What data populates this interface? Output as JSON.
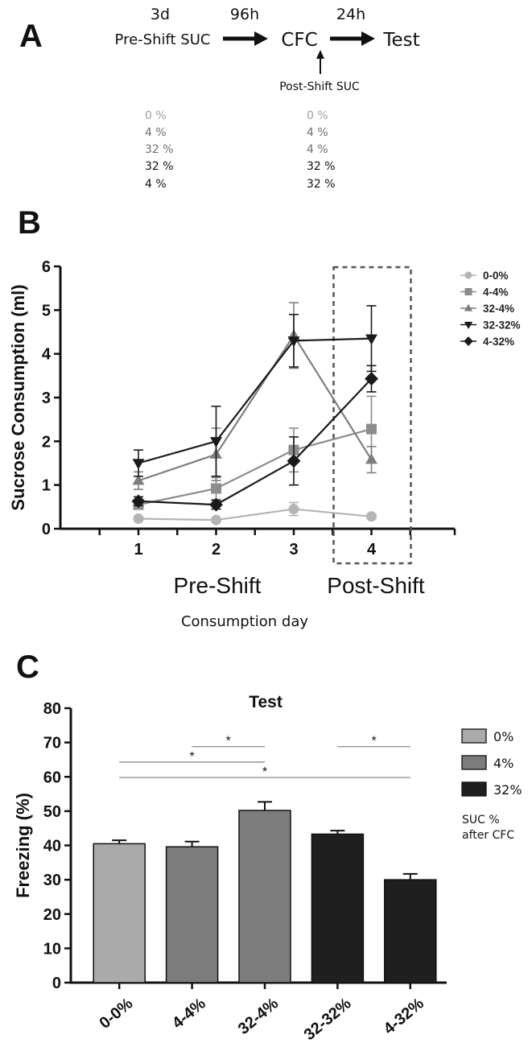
{
  "panel_a": {
    "letter": "A",
    "durations": {
      "pre": "3d",
      "gap1": "96h",
      "gap2": "24h"
    },
    "stages": {
      "pre_shift": "Pre-Shift SUC",
      "cfc": "CFC",
      "test": "Test",
      "post_shift": "Post-Shift SUC"
    },
    "groups": [
      {
        "pre": "0 %",
        "post": "0 %",
        "color": "#9e9e9e"
      },
      {
        "pre": "4 %",
        "post": "4 %",
        "color": "#7a7a7a"
      },
      {
        "pre": "32 %",
        "post": "4 %",
        "color": "#7a7a7a"
      },
      {
        "pre": "32 %",
        "post": "32 %",
        "color": "#111111"
      },
      {
        "pre": "4 %",
        "post": "32 %",
        "color": "#111111"
      }
    ]
  },
  "panel_b": {
    "letter": "B",
    "shift_labels": {
      "pre": "Pre-Shift",
      "post": "Post-Shift"
    }
  },
  "panel_c": {
    "letter": "C",
    "legend_note": [
      "SUC %",
      "after CFC"
    ]
  },
  "chart_data": [
    {
      "type": "line",
      "title": "",
      "xlabel": "Consumption day",
      "ylabel": "Sucrose  Consumption (ml)",
      "x": [
        1,
        2,
        3,
        4
      ],
      "x_tick_labels": [
        "1",
        "2",
        "3",
        "4"
      ],
      "ylim": [
        0,
        6
      ],
      "y_ticks": [
        0,
        1,
        2,
        3,
        4,
        5,
        6
      ],
      "grid": false,
      "legend": "top-right",
      "highlight_day": 4,
      "series": [
        {
          "name": "0-0%",
          "marker": "circle",
          "color": "#b5b5b5",
          "values": [
            0.23,
            0.2,
            0.45,
            0.28
          ],
          "errors": [
            0.05,
            0.05,
            0.15,
            0.05
          ]
        },
        {
          "name": "4-4%",
          "marker": "square",
          "color": "#8c8c8c",
          "values": [
            0.55,
            0.92,
            1.8,
            2.28
          ],
          "errors": [
            0.08,
            0.25,
            0.5,
            0.75
          ]
        },
        {
          "name": "32-4%",
          "marker": "triangle-up",
          "color": "#7e7e7e",
          "values": [
            1.1,
            1.7,
            4.42,
            1.58
          ],
          "errors": [
            0.2,
            0.6,
            0.75,
            0.3
          ]
        },
        {
          "name": "32-32%",
          "marker": "triangle-down",
          "color": "#1a1a1a",
          "values": [
            1.5,
            2.0,
            4.3,
            4.35
          ],
          "errors": [
            0.3,
            0.8,
            0.6,
            0.75
          ]
        },
        {
          "name": "4-32%",
          "marker": "diamond",
          "color": "#1a1a1a",
          "values": [
            0.63,
            0.55,
            1.55,
            3.43
          ],
          "errors": [
            0.1,
            0.1,
            0.55,
            0.3
          ]
        }
      ]
    },
    {
      "type": "bar",
      "title": "Test",
      "xlabel": "",
      "ylabel": "Freezing (%)",
      "categories": [
        "0-0%",
        "4-4%",
        "32-4%",
        "32-32%",
        "4-32%"
      ],
      "values": [
        40.5,
        39.6,
        50.2,
        43.3,
        30.0
      ],
      "errors": [
        1.0,
        1.5,
        2.5,
        1.0,
        1.7
      ],
      "colors": [
        "#aaaaaa",
        "#7c7c7c",
        "#7c7c7c",
        "#1f1f1f",
        "#1f1f1f"
      ],
      "ylim": [
        0,
        80
      ],
      "y_ticks": [
        0,
        10,
        20,
        30,
        40,
        50,
        60,
        70,
        80
      ],
      "grid": false,
      "legend": "top-right",
      "legend_entries": [
        {
          "name": "0%",
          "color": "#aaaaaa"
        },
        {
          "name": "4%",
          "color": "#7c7c7c"
        },
        {
          "name": "32%",
          "color": "#1f1f1f"
        }
      ],
      "significance": [
        {
          "from": "4-4%",
          "to": "32-4%",
          "label": "*"
        },
        {
          "from": "0-0%",
          "to": "32-4%",
          "label": "*"
        },
        {
          "from": "0-0%",
          "to": "4-32%",
          "label": "*"
        },
        {
          "from": "32-32%",
          "to": "4-32%",
          "label": "*"
        }
      ]
    }
  ]
}
